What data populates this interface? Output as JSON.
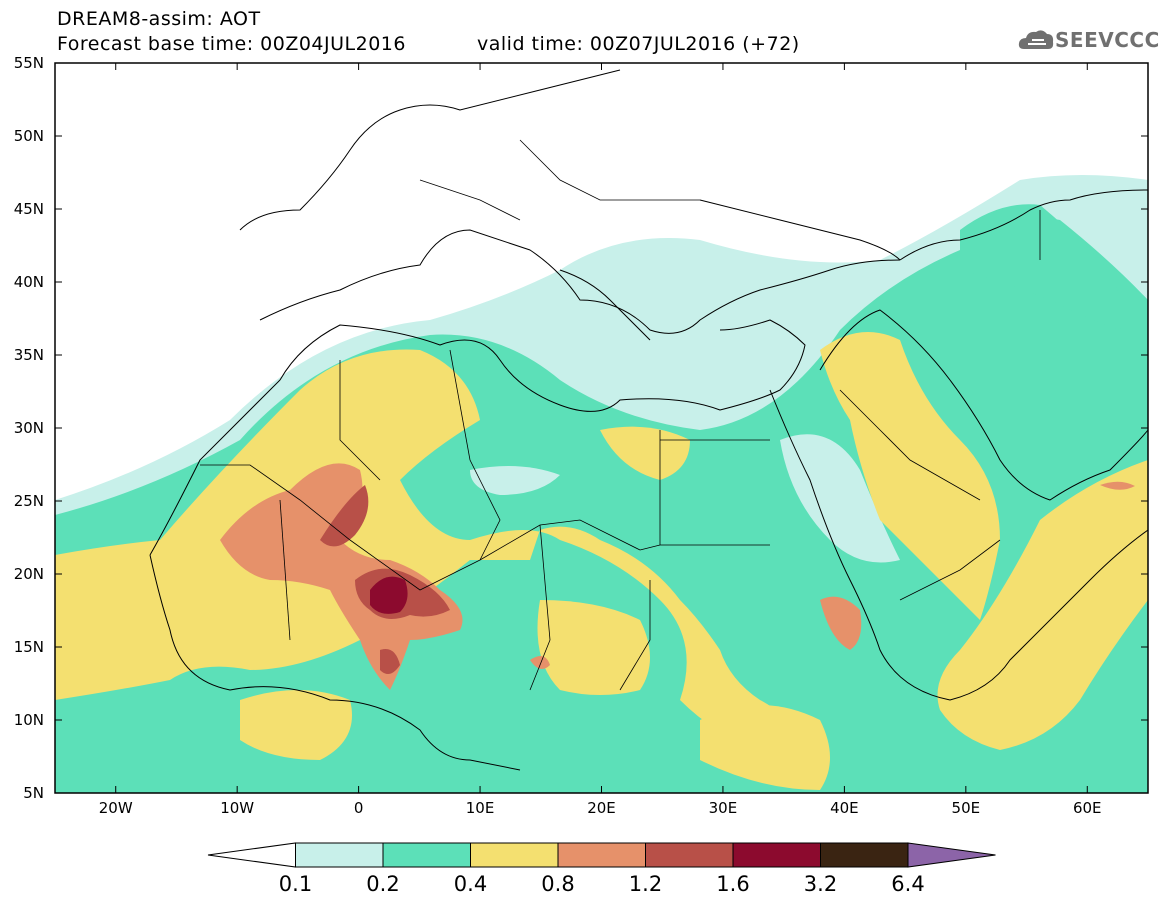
{
  "title": {
    "line1": "DREAM8-assim: AOT",
    "line2": "Forecast base time: 00Z04JUL2016",
    "line2_valid": "valid time: 00Z07JUL2016 (+72)"
  },
  "logo": {
    "text": "SEEVCCC",
    "icon": "cloud-icon"
  },
  "axes": {
    "lat_labels": [
      "55N",
      "50N",
      "45N",
      "40N",
      "35N",
      "30N",
      "25N",
      "20N",
      "15N",
      "10N",
      "5N"
    ],
    "lon_labels": [
      "20W",
      "10W",
      "0",
      "10E",
      "20E",
      "30E",
      "40E",
      "50E",
      "60E"
    ],
    "lat_range": [
      5,
      55
    ],
    "lon_range": [
      -25,
      65
    ]
  },
  "colorbar": {
    "labels": [
      "0.1",
      "0.2",
      "0.4",
      "0.8",
      "1.2",
      "1.6",
      "3.2",
      "6.4"
    ],
    "colors": [
      "#ffffff",
      "#c8f0ea",
      "#5ce0b8",
      "#f4e070",
      "#e6916a",
      "#b85048",
      "#8c0a2e",
      "#3a2412",
      "#8c64a8"
    ]
  }
}
